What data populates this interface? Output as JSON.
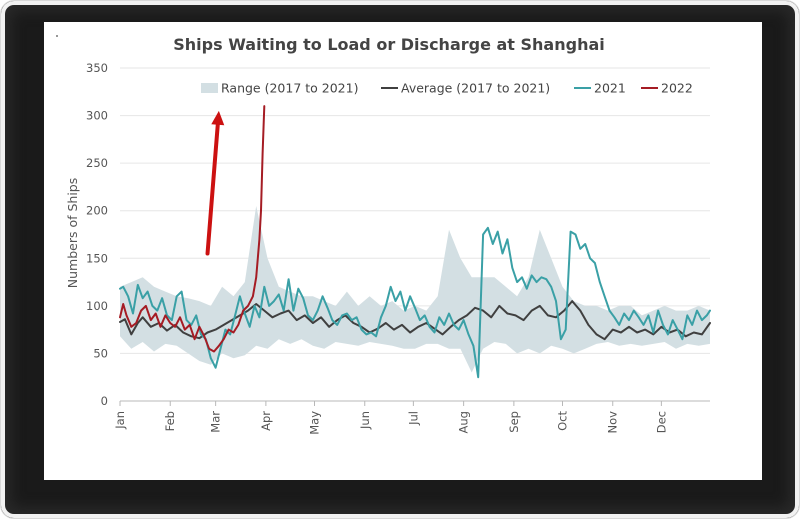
{
  "chart_data": {
    "type": "line",
    "title": "Ships Waiting to Load or Discharge at Shanghai",
    "ylabel": "Numbers of Ships",
    "xlabel": "",
    "ylim": [
      0,
      350
    ],
    "yticks": [
      0,
      50,
      100,
      150,
      200,
      250,
      300,
      350
    ],
    "grid": true,
    "legend_position": "top-right",
    "categories": [
      "Jan",
      "Feb",
      "Mar",
      "Apr",
      "May",
      "Jun",
      "Jul",
      "Aug",
      "Sep",
      "Oct",
      "Nov",
      "Dec"
    ],
    "x_range_days": [
      1,
      365
    ],
    "range": {
      "name": "Range (2017 to 2021)",
      "color": "#d3dfe3",
      "x": [
        1,
        8,
        15,
        22,
        29,
        36,
        43,
        50,
        57,
        64,
        71,
        78,
        85,
        92,
        99,
        106,
        113,
        120,
        127,
        134,
        141,
        148,
        155,
        162,
        169,
        176,
        183,
        190,
        197,
        204,
        211,
        218,
        225,
        232,
        239,
        246,
        253,
        260,
        267,
        274,
        281,
        288,
        295,
        302,
        309,
        316,
        323,
        330,
        337,
        344,
        351,
        358,
        365
      ],
      "low": [
        68,
        55,
        62,
        52,
        60,
        58,
        50,
        42,
        38,
        50,
        45,
        48,
        58,
        55,
        65,
        60,
        65,
        58,
        55,
        62,
        60,
        58,
        62,
        60,
        58,
        55,
        55,
        60,
        60,
        55,
        55,
        30,
        55,
        62,
        60,
        50,
        55,
        50,
        58,
        55,
        50,
        55,
        60,
        62,
        58,
        60,
        58,
        60,
        62,
        55,
        60,
        58,
        60
      ],
      "high": [
        120,
        125,
        130,
        120,
        115,
        110,
        108,
        105,
        100,
        120,
        110,
        125,
        205,
        150,
        120,
        115,
        110,
        110,
        105,
        100,
        115,
        100,
        110,
        100,
        105,
        95,
        100,
        95,
        110,
        180,
        150,
        130,
        130,
        130,
        120,
        110,
        130,
        180,
        150,
        120,
        105,
        100,
        100,
        95,
        100,
        100,
        90,
        95,
        100,
        95,
        95,
        100,
        95
      ]
    },
    "series": [
      {
        "name": "Average (2017 to 2021)",
        "color": "#404040",
        "x": [
          1,
          4,
          8,
          12,
          15,
          20,
          25,
          30,
          35,
          40,
          45,
          50,
          55,
          60,
          65,
          70,
          75,
          80,
          85,
          90,
          95,
          100,
          105,
          110,
          115,
          120,
          125,
          130,
          135,
          140,
          145,
          150,
          155,
          160,
          165,
          170,
          175,
          180,
          185,
          190,
          195,
          200,
          205,
          210,
          215,
          220,
          225,
          230,
          235,
          240,
          245,
          250,
          255,
          260,
          265,
          270,
          275,
          280,
          285,
          290,
          295,
          300,
          305,
          310,
          315,
          320,
          325,
          330,
          335,
          340,
          345,
          350,
          355,
          360,
          365
        ],
        "values": [
          83,
          86,
          70,
          82,
          88,
          78,
          82,
          74,
          80,
          72,
          68,
          66,
          72,
          75,
          80,
          85,
          90,
          95,
          102,
          95,
          88,
          92,
          95,
          85,
          90,
          82,
          88,
          78,
          85,
          90,
          82,
          78,
          72,
          76,
          82,
          75,
          80,
          72,
          78,
          82,
          76,
          70,
          78,
          85,
          90,
          98,
          95,
          88,
          100,
          92,
          90,
          85,
          95,
          100,
          90,
          88,
          95,
          105,
          95,
          80,
          70,
          65,
          75,
          72,
          78,
          72,
          75,
          70,
          78,
          72,
          75,
          68,
          72,
          70,
          82
        ]
      },
      {
        "name": "2021",
        "color": "#3aa0a6",
        "x": [
          1,
          3,
          6,
          9,
          12,
          15,
          18,
          21,
          24,
          27,
          30,
          33,
          36,
          39,
          42,
          45,
          48,
          51,
          54,
          57,
          60,
          63,
          66,
          69,
          72,
          75,
          78,
          81,
          84,
          87,
          90,
          93,
          96,
          99,
          102,
          105,
          108,
          111,
          114,
          117,
          120,
          123,
          126,
          129,
          132,
          135,
          138,
          141,
          144,
          147,
          150,
          153,
          156,
          159,
          162,
          165,
          168,
          171,
          174,
          177,
          180,
          183,
          186,
          189,
          192,
          195,
          198,
          201,
          204,
          207,
          210,
          213,
          216,
          219,
          222,
          225,
          228,
          231,
          234,
          237,
          240,
          243,
          246,
          249,
          252,
          255,
          258,
          261,
          264,
          267,
          270,
          273,
          276,
          279,
          282,
          285,
          288,
          291,
          294,
          297,
          300,
          303,
          306,
          309,
          312,
          315,
          318,
          321,
          324,
          327,
          330,
          333,
          336,
          339,
          342,
          345,
          348,
          351,
          354,
          357,
          360,
          363,
          365
        ],
        "values": [
          118,
          120,
          110,
          92,
          122,
          108,
          115,
          100,
          95,
          108,
          90,
          85,
          110,
          115,
          85,
          80,
          90,
          70,
          65,
          45,
          35,
          55,
          75,
          70,
          90,
          110,
          92,
          78,
          100,
          88,
          120,
          100,
          105,
          112,
          95,
          128,
          95,
          118,
          108,
          90,
          85,
          95,
          110,
          98,
          85,
          80,
          90,
          92,
          85,
          88,
          75,
          70,
          72,
          68,
          88,
          100,
          120,
          105,
          115,
          95,
          110,
          98,
          85,
          90,
          78,
          72,
          88,
          80,
          92,
          80,
          75,
          85,
          70,
          58,
          25,
          175,
          182,
          165,
          178,
          155,
          170,
          140,
          125,
          130,
          118,
          132,
          125,
          130,
          128,
          120,
          105,
          65,
          75,
          178,
          175,
          160,
          165,
          150,
          145,
          125,
          110,
          95,
          88,
          80,
          92,
          85,
          95,
          88,
          80,
          90,
          72,
          95,
          80,
          70,
          85,
          75,
          65,
          90,
          80,
          95,
          85,
          90,
          95
        ]
      },
      {
        "name": "2022",
        "color": "#a51c24",
        "x": [
          1,
          3,
          5,
          8,
          11,
          14,
          17,
          20,
          23,
          26,
          29,
          32,
          35,
          38,
          41,
          44,
          47,
          50,
          53,
          56,
          59,
          62,
          65,
          68,
          71,
          74,
          77,
          80,
          83,
          85,
          87,
          88,
          89,
          90
        ],
        "values": [
          88,
          102,
          90,
          78,
          82,
          95,
          100,
          85,
          92,
          78,
          90,
          82,
          78,
          88,
          75,
          80,
          65,
          78,
          68,
          55,
          52,
          58,
          65,
          75,
          72,
          80,
          95,
          100,
          110,
          130,
          170,
          200,
          260,
          310
        ]
      }
    ],
    "annotation": {
      "type": "arrow",
      "color": "#cc1111",
      "from": [
        55,
        155
      ],
      "to": [
        62,
        305
      ]
    }
  }
}
